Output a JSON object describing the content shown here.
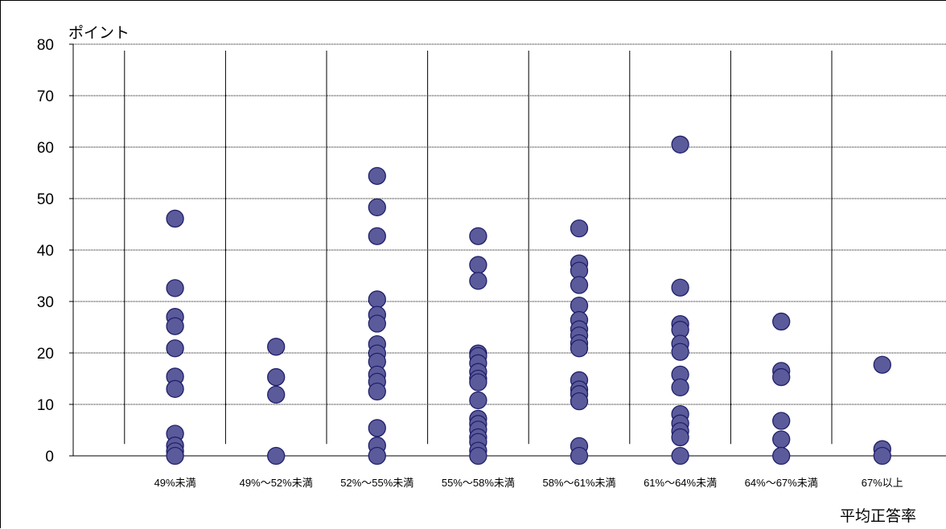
{
  "chart_data": {
    "type": "scatter",
    "title": "",
    "ylabel": "ポイント",
    "xlabel": "平均正答率",
    "ylim": [
      0,
      80
    ],
    "yticks": [
      0,
      10,
      20,
      30,
      40,
      50,
      60,
      70,
      80
    ],
    "grid": true,
    "categories": [
      "49%未満",
      "49%～52%未満",
      "52%～55%未満",
      "55%～58%未満",
      "58%～61%未満",
      "61%～64%未満",
      "64%～67%未満",
      "67%以上"
    ],
    "series": [
      {
        "marker_color": "#5B5B9B",
        "marker_edge": "#1F1F6B",
        "points": [
          [
            0,
            46.1
          ],
          [
            0,
            32.6
          ],
          [
            0,
            27.0
          ],
          [
            0,
            25.2
          ],
          [
            0,
            20.9
          ],
          [
            0,
            15.4
          ],
          [
            0,
            13.0
          ],
          [
            0,
            4.3
          ],
          [
            0,
            2.0
          ],
          [
            0,
            0.9
          ],
          [
            0,
            0
          ],
          [
            1,
            21.2
          ],
          [
            1,
            15.3
          ],
          [
            1,
            11.9
          ],
          [
            1,
            0
          ],
          [
            2,
            54.4
          ],
          [
            2,
            48.3
          ],
          [
            2,
            42.7
          ],
          [
            2,
            30.4
          ],
          [
            2,
            27.4
          ],
          [
            2,
            25.7
          ],
          [
            2,
            21.7
          ],
          [
            2,
            19.9
          ],
          [
            2,
            18.3
          ],
          [
            2,
            15.8
          ],
          [
            2,
            14.4
          ],
          [
            2,
            12.5
          ],
          [
            2,
            5.4
          ],
          [
            2,
            2.0
          ],
          [
            2,
            0
          ],
          [
            3,
            42.7
          ],
          [
            3,
            37.1
          ],
          [
            3,
            34.0
          ],
          [
            3,
            19.9
          ],
          [
            3,
            19.4
          ],
          [
            3,
            18.0
          ],
          [
            3,
            16.3
          ],
          [
            3,
            15.0
          ],
          [
            3,
            14.3
          ],
          [
            3,
            10.8
          ],
          [
            3,
            7.2
          ],
          [
            3,
            6.2
          ],
          [
            3,
            5.1
          ],
          [
            3,
            3.6
          ],
          [
            3,
            2.7
          ],
          [
            3,
            1.0
          ],
          [
            3,
            0
          ],
          [
            4,
            44.2
          ],
          [
            4,
            37.4
          ],
          [
            4,
            36.0
          ],
          [
            4,
            33.2
          ],
          [
            4,
            29.2
          ],
          [
            4,
            26.4
          ],
          [
            4,
            24.6
          ],
          [
            4,
            23.4
          ],
          [
            4,
            21.9
          ],
          [
            4,
            20.9
          ],
          [
            4,
            14.7
          ],
          [
            4,
            12.9
          ],
          [
            4,
            12.0
          ],
          [
            4,
            10.6
          ],
          [
            4,
            1.9
          ],
          [
            4,
            0
          ],
          [
            5,
            60.5
          ],
          [
            5,
            32.7
          ],
          [
            5,
            25.6
          ],
          [
            5,
            24.5
          ],
          [
            5,
            21.8
          ],
          [
            5,
            20.2
          ],
          [
            5,
            15.8
          ],
          [
            5,
            13.3
          ],
          [
            5,
            8.1
          ],
          [
            5,
            6.3
          ],
          [
            5,
            4.8
          ],
          [
            5,
            3.6
          ],
          [
            5,
            0
          ],
          [
            6,
            26.1
          ],
          [
            6,
            16.5
          ],
          [
            6,
            15.3
          ],
          [
            6,
            6.8
          ],
          [
            6,
            3.2
          ],
          [
            6,
            0
          ],
          [
            7,
            17.7
          ],
          [
            7,
            1.3
          ],
          [
            7,
            0
          ]
        ]
      }
    ]
  }
}
